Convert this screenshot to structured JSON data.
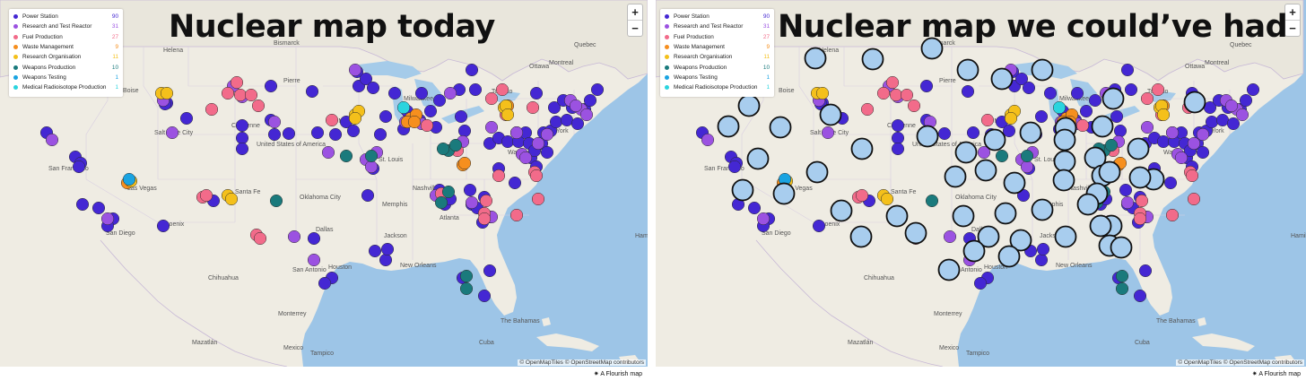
{
  "panels": [
    {
      "title": "Nuclear map today",
      "legend": [
        {
          "label": "Power Station",
          "count": "90",
          "color": "#4427d3"
        },
        {
          "label": "Research and Test Reactor",
          "count": "31",
          "color": "#9b52e1"
        },
        {
          "label": "Fuel Production",
          "count": "27",
          "color": "#f26b8a"
        },
        {
          "label": "Waste Management",
          "count": "9",
          "color": "#f68f1e"
        },
        {
          "label": "Research Organisation",
          "count": "11",
          "color": "#f4c01b"
        },
        {
          "label": "Weapons Production",
          "count": "10",
          "color": "#1a7a7c"
        },
        {
          "label": "Weapons Testing",
          "count": "1",
          "color": "#19a3e1"
        },
        {
          "label": "Medical Radioisotope Production",
          "count": "1",
          "color": "#2ad4de"
        }
      ],
      "zoom_in": "+",
      "zoom_out": "−",
      "attribution": "© OpenMapTiles © OpenStreetMap contributors"
    },
    {
      "title": "Nuclear map we could’ve had",
      "legend": [
        {
          "label": "Power Station",
          "count": "90",
          "color": "#4427d3"
        },
        {
          "label": "Research and Test Reactor",
          "count": "31",
          "color": "#9b52e1"
        },
        {
          "label": "Fuel Production",
          "count": "27",
          "color": "#f26b8a"
        },
        {
          "label": "Waste Management",
          "count": "9",
          "color": "#f68f1e"
        },
        {
          "label": "Research Organisation",
          "count": "11",
          "color": "#f4c01b"
        },
        {
          "label": "Weapons Production",
          "count": "10",
          "color": "#1a7a7c"
        },
        {
          "label": "Weapons Testing",
          "count": "1",
          "color": "#19a3e1"
        },
        {
          "label": "Medical Radioisotope Production",
          "count": "1",
          "color": "#2ad4de"
        }
      ],
      "zoom_in": "+",
      "zoom_out": "−",
      "attribution": "© OpenMapTiles © OpenStreetMap contributors",
      "hypothetical_marker_color": "#a8cdee"
    }
  ],
  "flourish_badge": "A Flourish map",
  "map_labels": [
    "Helena",
    "Bismarck",
    "Pierre",
    "Boise",
    "Cheyenne",
    "Salt Lake City",
    "United States of America",
    "Des Moines",
    "St. Louis",
    "Milwaukee",
    "Toronto",
    "Ottawa",
    "Montreal",
    "Quebec",
    "New York",
    "Washington",
    "Nashville",
    "Atlanta",
    "Memphis",
    "Oklahoma City",
    "Dallas",
    "Houston",
    "San Antonio",
    "Jackson",
    "New Orleans",
    "Las Vegas",
    "San Francisco",
    "San Diego",
    "Phoenix",
    "Santa Fe",
    "Chihuahua",
    "Monterrey",
    "Mazatlán",
    "Mexico",
    "Tampico",
    "Cuba",
    "The Bahamas",
    "Hamilton"
  ],
  "map_colors": {
    "water": "#9dc5e7",
    "land": "#efece3",
    "border": "#c7b8d6",
    "lake": "#a5cbe9"
  }
}
